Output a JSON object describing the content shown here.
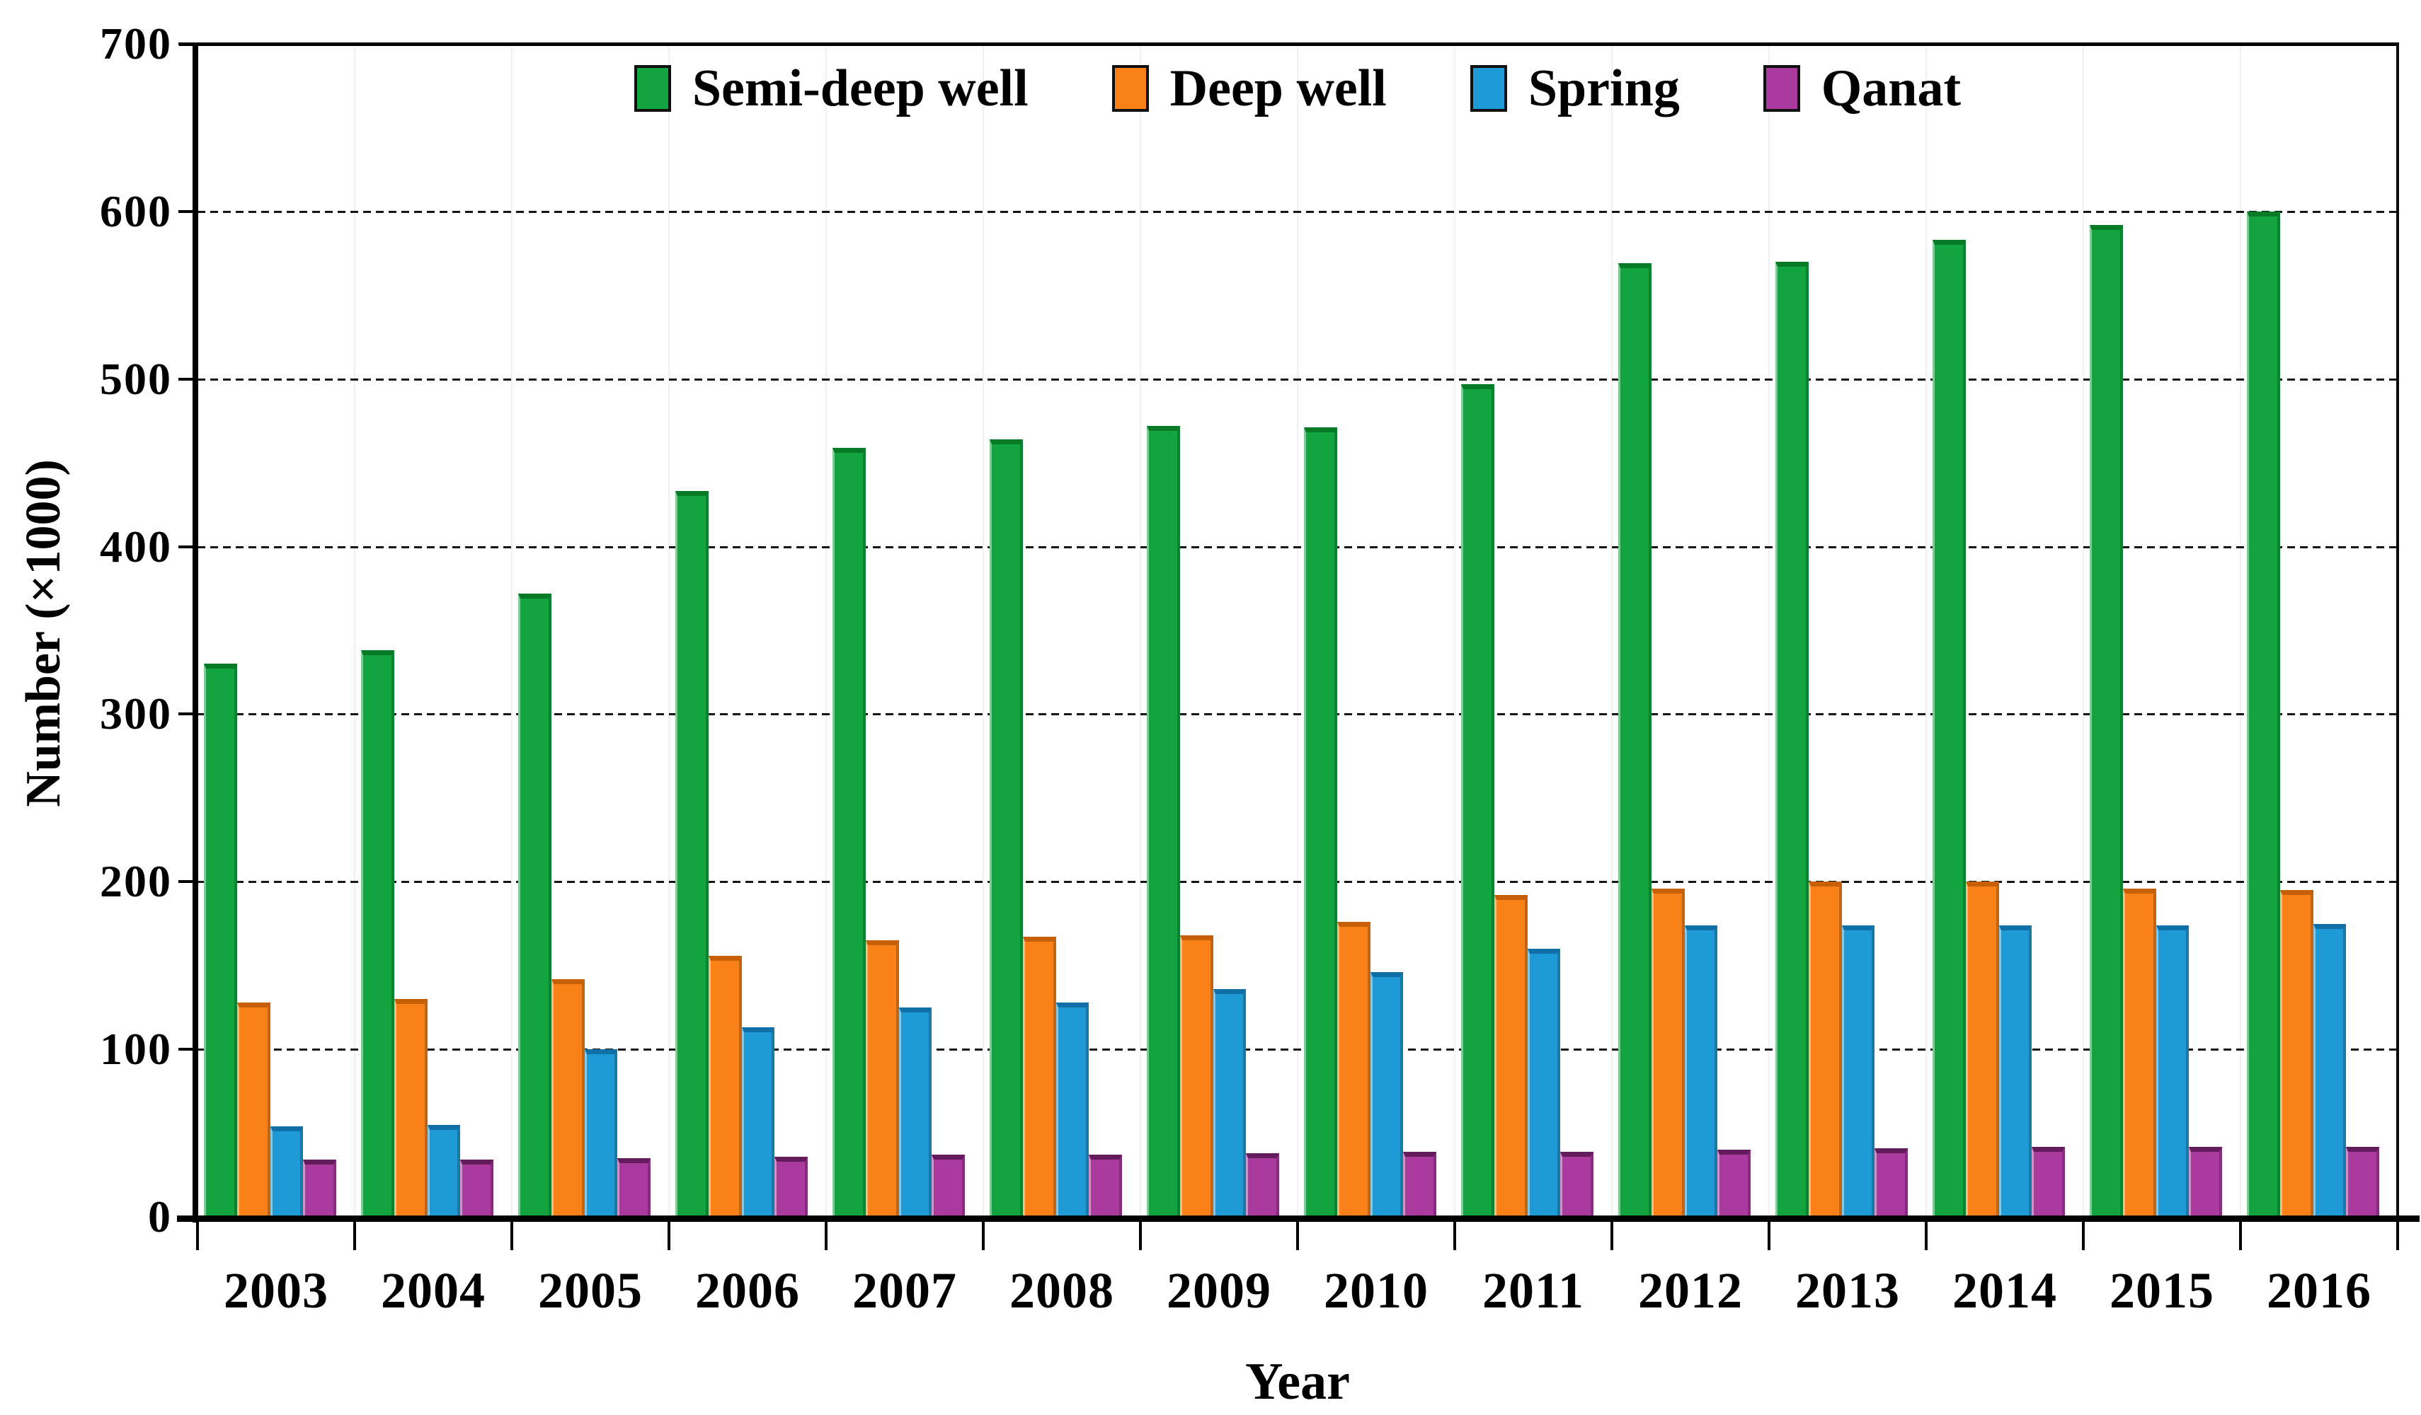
{
  "chart_data": {
    "type": "bar",
    "title": "",
    "xlabel": "Year",
    "ylabel": "Number (×1000)",
    "ylim": [
      0,
      700
    ],
    "ytick_interval": 100,
    "ytick_labels": [
      "0",
      "100",
      "200",
      "300",
      "400",
      "500",
      "600",
      "700"
    ],
    "grid": "horizontal-dashed",
    "legend_position": "top-center",
    "categories": [
      "2003",
      "2004",
      "2005",
      "2006",
      "2007",
      "2008",
      "2009",
      "2010",
      "2011",
      "2012",
      "2013",
      "2014",
      "2015",
      "2016"
    ],
    "series": [
      {
        "name": "Semi-deep well",
        "color": "#12A53F",
        "cap_color": "#067A27",
        "values": [
          330,
          338,
          372,
          433,
          459,
          464,
          472,
          471,
          497,
          569,
          570,
          583,
          592,
          600
        ]
      },
      {
        "name": "Deep well",
        "color": "#F98118",
        "cap_color": "#C65F06",
        "values": [
          128,
          130,
          142,
          156,
          165,
          167,
          168,
          176,
          192,
          196,
          200,
          200,
          196,
          195
        ]
      },
      {
        "name": "Spring",
        "color": "#1E9BD7",
        "cap_color": "#0F6FA6",
        "values": [
          54,
          55,
          100,
          113,
          125,
          128,
          136,
          146,
          160,
          174,
          174,
          174,
          174,
          175
        ]
      },
      {
        "name": "Qanat",
        "color": "#AA3A9D",
        "cap_color": "#641B5C",
        "values": [
          34,
          34,
          35,
          36,
          37,
          37,
          38,
          39,
          39,
          40,
          41,
          42,
          42,
          42
        ]
      }
    ]
  }
}
